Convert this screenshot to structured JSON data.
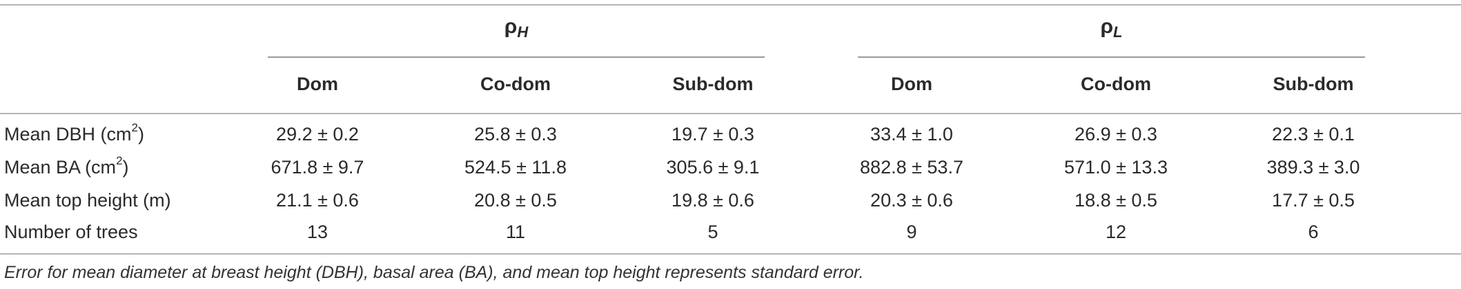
{
  "table": {
    "groups": [
      {
        "symbol": "ρ",
        "subscript": "H"
      },
      {
        "symbol": "ρ",
        "subscript": "L"
      }
    ],
    "columns": [
      "Dom",
      "Co-dom",
      "Sub-dom",
      "Dom",
      "Co-dom",
      "Sub-dom"
    ],
    "rows": [
      {
        "label": "Mean DBH (cm",
        "label_sup": "2",
        "label_end": ")",
        "values": [
          "29.2 ± 0.2",
          "25.8 ± 0.3",
          "19.7 ± 0.3",
          "33.4 ± 1.0",
          "26.9 ± 0.3",
          "22.3 ± 0.1"
        ]
      },
      {
        "label": "Mean BA (cm",
        "label_sup": "2",
        "label_end": ")",
        "values": [
          "671.8 ± 9.7",
          "524.5 ± 11.8",
          "305.6 ± 9.1",
          "882.8 ± 53.7",
          "571.0 ± 13.3",
          "389.3 ± 3.0"
        ]
      },
      {
        "label": "Mean top height (m)",
        "label_sup": "",
        "label_end": "",
        "values": [
          "21.1 ± 0.6",
          "20.8 ± 0.5",
          "19.8 ± 0.6",
          "20.3 ± 0.6",
          "18.8 ± 0.5",
          "17.7 ± 0.5"
        ]
      },
      {
        "label": "Number of trees",
        "label_sup": "",
        "label_end": "",
        "values": [
          "13",
          "11",
          "5",
          "9",
          "12",
          "6"
        ]
      }
    ],
    "footnote": "Error for mean diameter at breast height (DBH), basal area (BA), and mean top height represents standard error."
  }
}
